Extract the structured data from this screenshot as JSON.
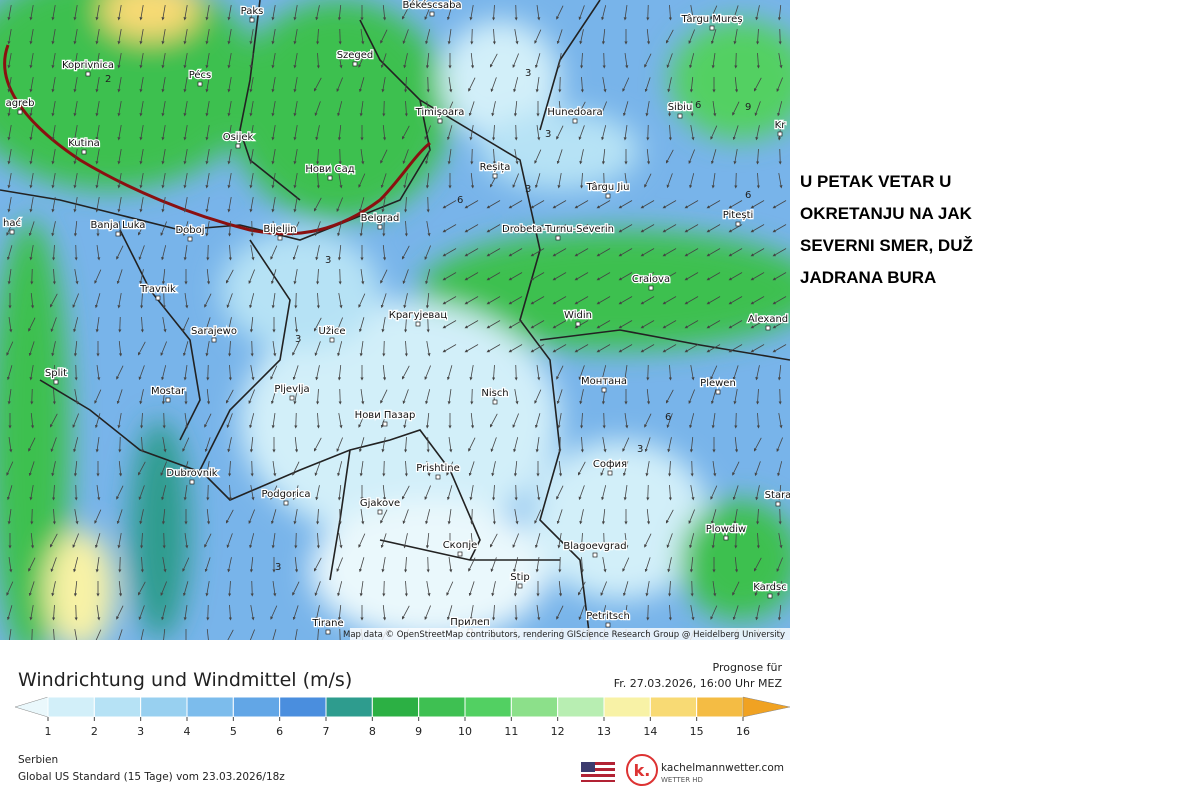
{
  "map": {
    "cities": [
      "Paks",
      "Békéscsaba",
      "Târgu Mureș",
      "Koprivnica",
      "Pécs",
      "Szeged",
      "agreb",
      "Timișoara",
      "Hunedoara",
      "Sibiu",
      "Kr",
      "Osijek",
      "Kutina",
      "Нови Сад",
      "Reșița",
      "Târgu Jiu",
      "Belgrad",
      "Drobeta-Turnu-Severin",
      "Pitești",
      "Banja Luka",
      "Doboj",
      "Bijeljin",
      "hać",
      "Travnik",
      "Craiova",
      "Крагујевац",
      "Widin",
      "Alexand",
      "Sarajewo",
      "Užice",
      "Split",
      "Монтана",
      "Plewen",
      "Mostar",
      "Pljevlja",
      "Nisch",
      "Нови Пазар",
      "София",
      "Prishtine",
      "Dubrovnik",
      "Podgorica",
      "Gjakove",
      "Stara",
      "Plowdiw",
      "Скопје",
      "Blagoevgrad",
      "Stip",
      "Kardsc",
      "Petritsch",
      "Tirane",
      "Прилеп"
    ],
    "isolines": [
      3,
      2,
      3,
      3,
      6,
      6,
      9,
      6,
      3,
      3,
      6,
      3,
      3
    ],
    "attribution": "Map data © OpenStreetMap contributors, rendering GIScience Research Group @ Heidelberg University"
  },
  "annotation": [
    "U PETAK VETAR U",
    "OKRETANJU NA JAK",
    "SEVERNI SMER, DUŽ",
    "JADRANA BURA"
  ],
  "legend": {
    "title": "Windrichtung und Windmittel (m/s)",
    "ticks": [
      1,
      2,
      3,
      4,
      5,
      6,
      7,
      8,
      9,
      10,
      11,
      12,
      13,
      14,
      15,
      16
    ],
    "colors": [
      "#eaf8fc",
      "#d2eff9",
      "#b6e2f5",
      "#98d0f0",
      "#7cbcec",
      "#62a6e6",
      "#4a8ede",
      "#2e9c8e",
      "#2cb044",
      "#3ec052",
      "#52d062",
      "#8ce08a",
      "#b8eeb2",
      "#f8f2a6",
      "#f8da74",
      "#f4bc44",
      "#f0a222"
    ]
  },
  "forecast": {
    "label": "Prognose für",
    "time": "Fr. 27.03.2026, 16:00 Uhr MEZ"
  },
  "footer": {
    "region": "Serbien",
    "model": "Global US Standard (15 Tage) vom  23.03.2026/18z",
    "logo": "k.",
    "site": "kachelmannwetter.com",
    "tagline": "WETTER HD"
  }
}
